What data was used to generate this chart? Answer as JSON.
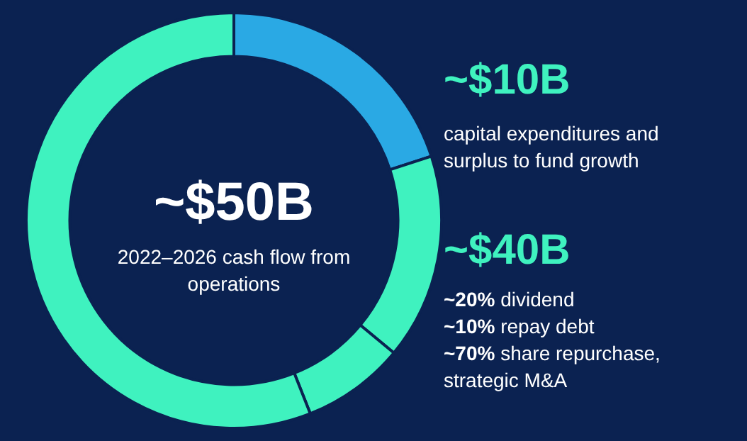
{
  "chart_data": {
    "type": "donut",
    "categories": [
      null,
      null,
      null,
      null
    ],
    "values": [
      20,
      16,
      8,
      56
    ],
    "colors": [
      "#2aa9e4",
      "#3ff2bf",
      "#3ff2bf",
      "#3ff2bf"
    ],
    "legend": false,
    "annotations": [
      "~$50B",
      "2022–2026 cash flow from operations",
      "~$10B",
      "capital expenditures and surplus to fund growth",
      "~$40B",
      "~20% dividend",
      "~10% repay debt",
      "~70% share repurchase, strategic M&A"
    ]
  }
}
